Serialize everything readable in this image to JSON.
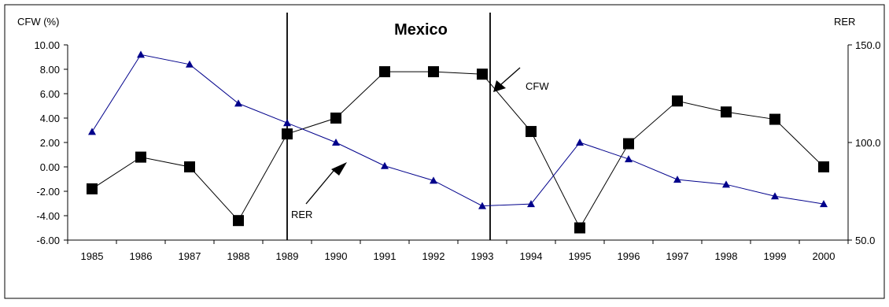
{
  "chart_data": {
    "type": "line",
    "title": "Mexico",
    "left_axis_label": "CFW (%)",
    "right_axis_label": "RER",
    "categories": [
      "1985",
      "1986",
      "1987",
      "1988",
      "1989",
      "1990",
      "1991",
      "1992",
      "1993",
      "1994",
      "1995",
      "1996",
      "1997",
      "1998",
      "1999",
      "2000"
    ],
    "left_ylim": [
      -6,
      10
    ],
    "left_ticks": [
      "10.00",
      "8.00",
      "6.00",
      "4.00",
      "2.00",
      "0.00",
      "-2.00",
      "-4.00",
      "-6.00"
    ],
    "right_ylim": [
      50,
      150
    ],
    "right_ticks": [
      "150.0",
      "100.0",
      "50.0"
    ],
    "series": [
      {
        "name": "CFW",
        "axis": "left",
        "marker": "square",
        "color": "#000000",
        "values": [
          -1.8,
          0.8,
          0.0,
          -4.4,
          2.7,
          4.0,
          7.8,
          7.8,
          7.6,
          2.9,
          -5.0,
          1.9,
          5.4,
          4.5,
          3.9,
          0.0
        ]
      },
      {
        "name": "RER",
        "axis": "right",
        "marker": "triangle",
        "color": "#00008B",
        "values": [
          105.5,
          145.0,
          140.0,
          120.0,
          110.0,
          100.0,
          88.0,
          80.5,
          67.5,
          68.5,
          100.0,
          91.5,
          81.0,
          78.5,
          72.5,
          68.5
        ]
      }
    ],
    "vertical_markers": [
      "1989",
      "1993"
    ],
    "annotations": [
      {
        "text": "CFW",
        "target": "1993"
      },
      {
        "text": "RER",
        "target": "1990"
      }
    ]
  }
}
